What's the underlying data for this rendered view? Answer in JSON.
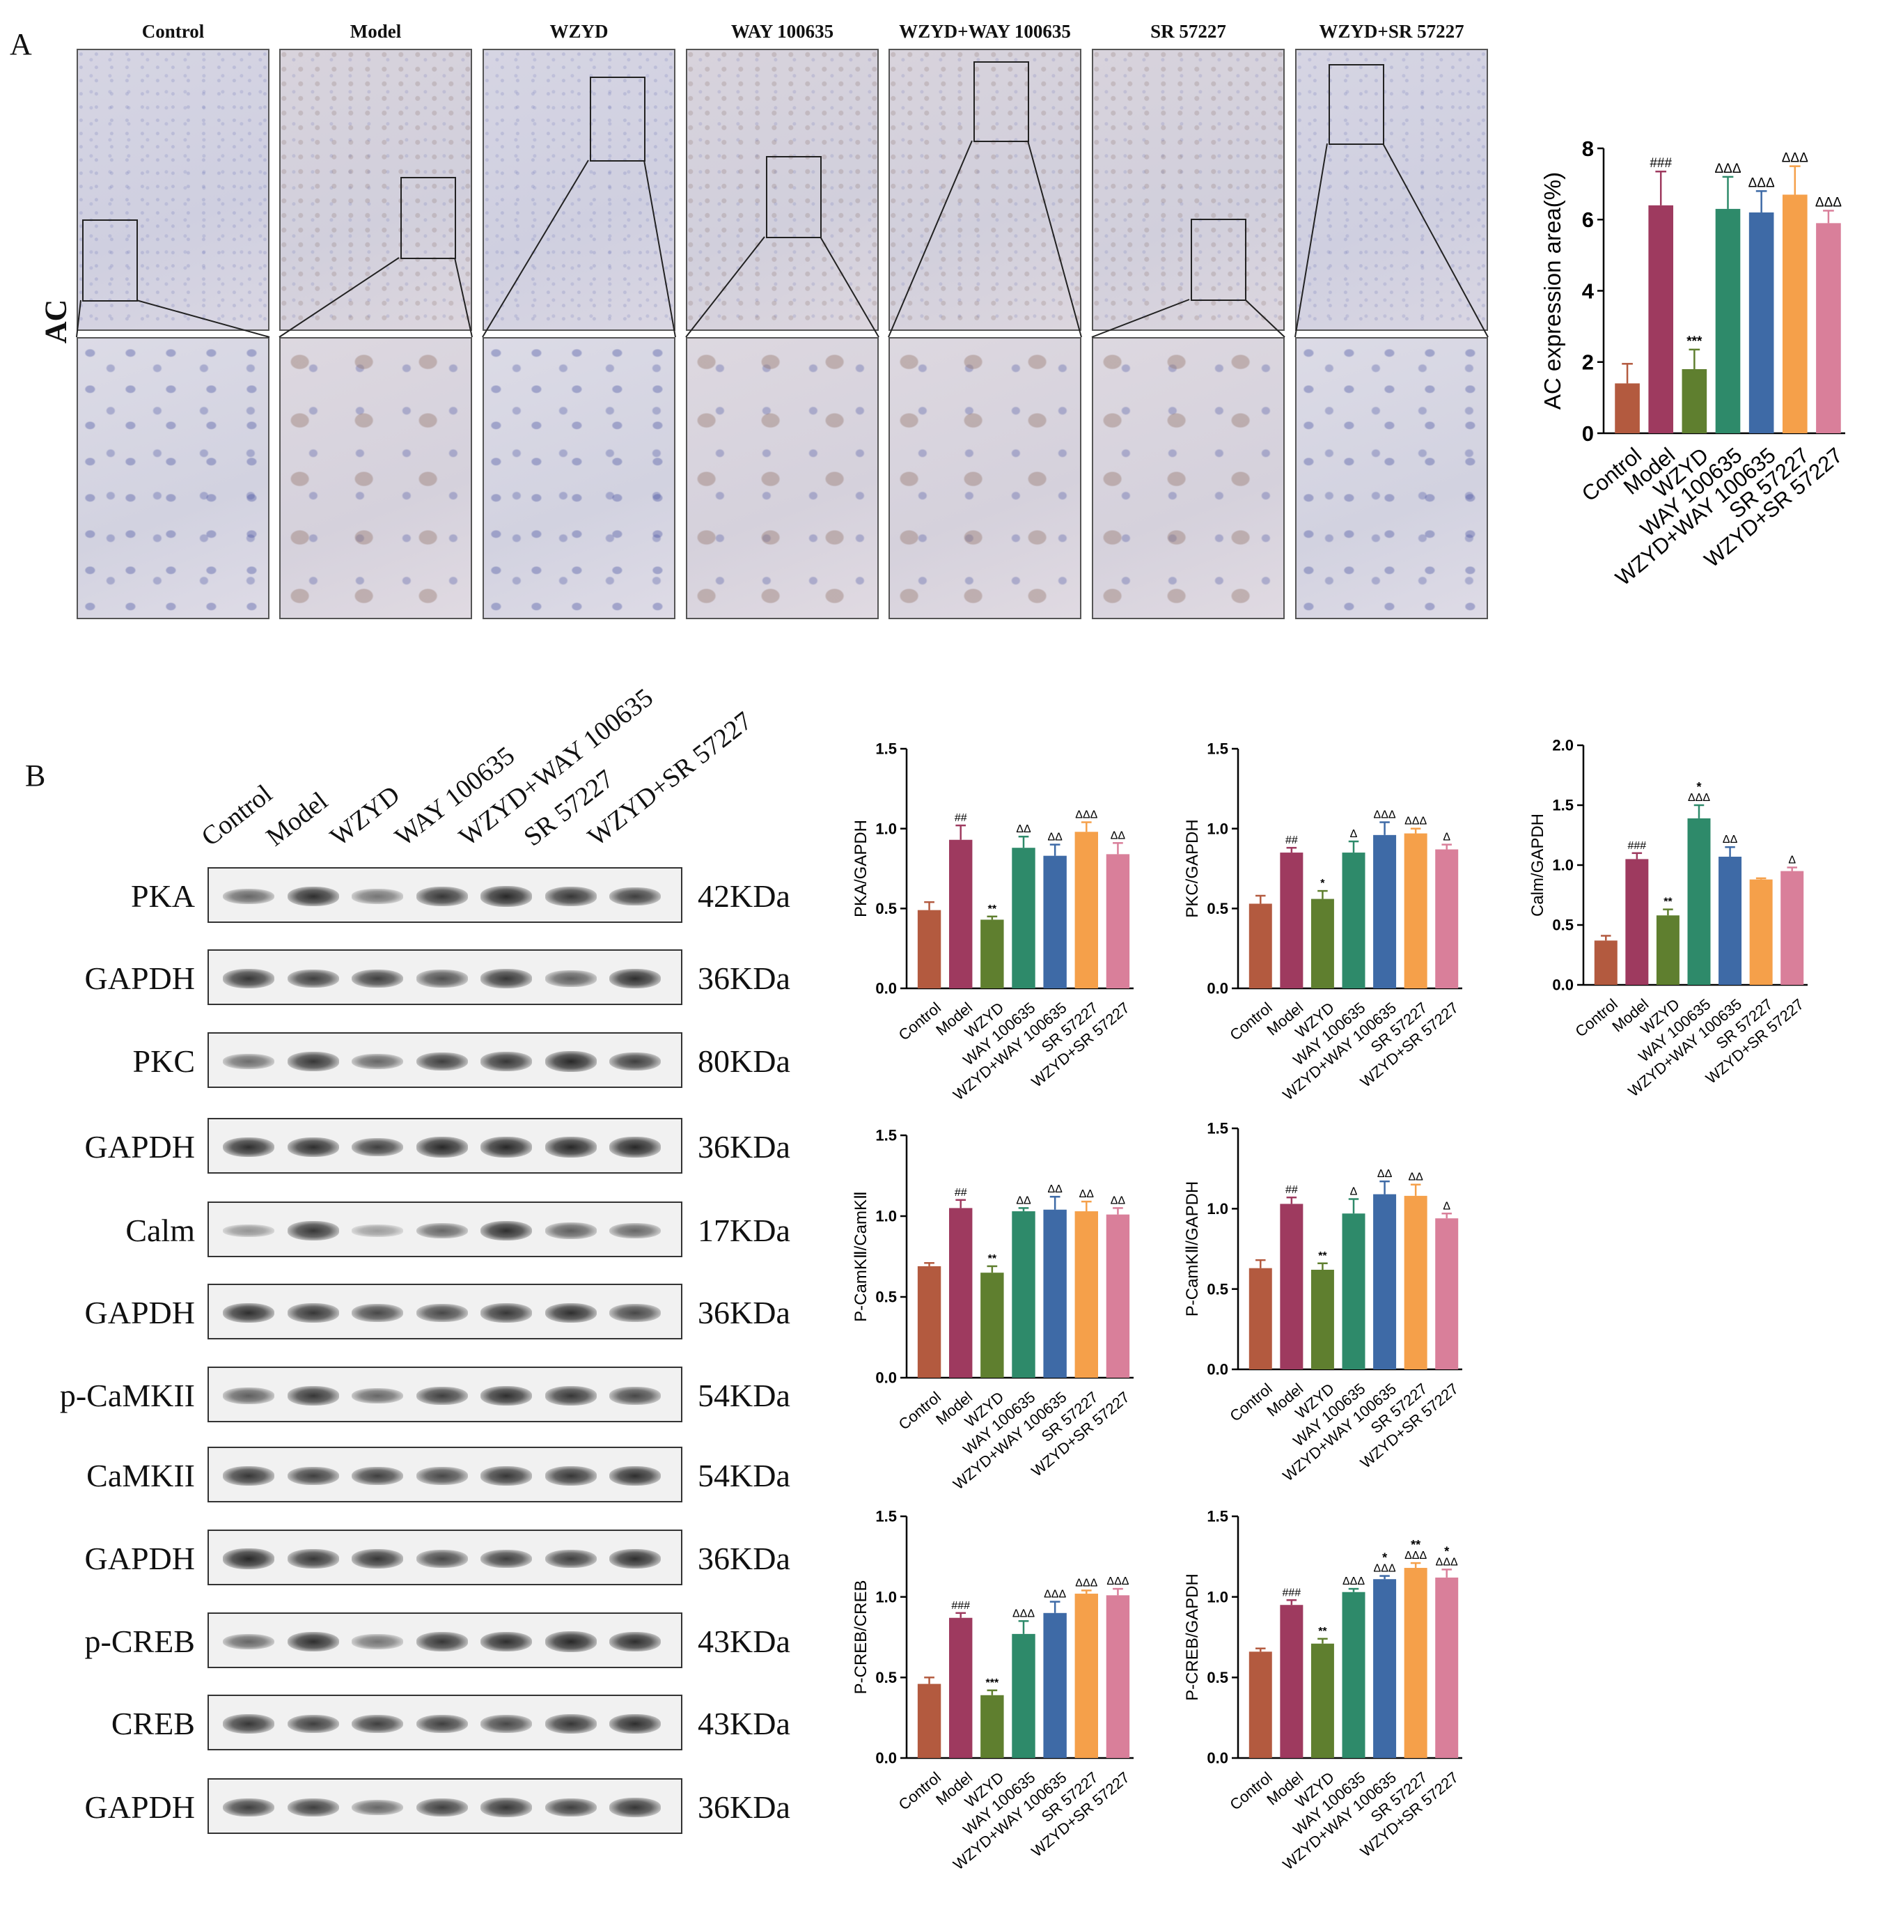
{
  "panels": {
    "a": "A",
    "b": "B"
  },
  "ihc": {
    "row_label": "AC",
    "groups": [
      "Control",
      "Model",
      "WZYD",
      "WAY 100635",
      "WZYD+WAY 100635",
      "SR 57227",
      "WZYD+SR 57227"
    ]
  },
  "blot": {
    "lanes": [
      "Control",
      "Model",
      "WZYD",
      "WAY 100635",
      "WZYD+WAY 100635",
      "SR 57227",
      "WZYD+SR 57227"
    ],
    "rows": [
      {
        "name": "PKA",
        "size": "42KDa",
        "intensity": [
          0.55,
          0.9,
          0.45,
          0.85,
          0.95,
          0.85,
          0.8
        ]
      },
      {
        "name": "GAPDH",
        "size": "36KDa",
        "intensity": [
          0.85,
          0.8,
          0.8,
          0.7,
          0.85,
          0.6,
          0.9
        ]
      },
      {
        "name": "PKC",
        "size": "80KDa",
        "intensity": [
          0.5,
          0.85,
          0.55,
          0.8,
          0.85,
          0.95,
          0.8
        ]
      },
      {
        "name": "GAPDH",
        "size": "36KDa",
        "intensity": [
          0.9,
          0.9,
          0.8,
          0.95,
          0.95,
          0.95,
          0.95
        ]
      },
      {
        "name": "Calm",
        "size": "17KDa",
        "intensity": [
          0.25,
          0.85,
          0.2,
          0.55,
          0.9,
          0.6,
          0.55
        ]
      },
      {
        "name": "GAPDH",
        "size": "36KDa",
        "intensity": [
          0.9,
          0.85,
          0.75,
          0.75,
          0.85,
          0.9,
          0.75
        ]
      },
      {
        "name": "p-CaMKII",
        "size": "54KDa",
        "intensity": [
          0.6,
          0.85,
          0.55,
          0.8,
          0.9,
          0.85,
          0.75
        ]
      },
      {
        "name": "CaMKII",
        "size": "54KDa",
        "intensity": [
          0.85,
          0.8,
          0.8,
          0.75,
          0.85,
          0.85,
          0.9
        ]
      },
      {
        "name": "GAPDH",
        "size": "36KDa",
        "intensity": [
          0.95,
          0.85,
          0.85,
          0.75,
          0.8,
          0.8,
          0.9
        ]
      },
      {
        "name": "p-CREB",
        "size": "43KDa",
        "intensity": [
          0.55,
          0.9,
          0.45,
          0.85,
          0.9,
          0.95,
          0.9
        ]
      },
      {
        "name": "CREB",
        "size": "43KDa",
        "intensity": [
          0.85,
          0.8,
          0.8,
          0.8,
          0.75,
          0.85,
          0.9
        ]
      },
      {
        "name": "GAPDH",
        "size": "36KDa",
        "intensity": [
          0.8,
          0.8,
          0.55,
          0.8,
          0.85,
          0.8,
          0.85
        ]
      }
    ]
  },
  "colors": [
    "#b35a3f",
    "#9e3a5f",
    "#5f7f2f",
    "#2e8a6a",
    "#3e6aa6",
    "#f5a04a",
    "#d97f9a"
  ],
  "chart_data": [
    {
      "id": "ac",
      "type": "bar",
      "ylabel": "AC expression area(%)",
      "ylim": [
        0,
        8
      ],
      "yticks": [
        "0",
        "2",
        "4",
        "6",
        "8"
      ],
      "categories": [
        "Control",
        "Model",
        "WZYD",
        "WAY 100635",
        "WZYD+WAY 100635",
        "SR 57227",
        "WZYD+SR 57227"
      ],
      "values": [
        1.4,
        6.4,
        1.8,
        6.3,
        6.2,
        6.7,
        5.9
      ],
      "errors": [
        0.55,
        0.95,
        0.55,
        0.9,
        0.6,
        0.8,
        0.35
      ],
      "annotations": [
        [
          "",
          ""
        ],
        [
          "",
          "###"
        ],
        [
          "",
          "***"
        ],
        [
          "",
          "ΔΔΔ"
        ],
        [
          "",
          "ΔΔΔ"
        ],
        [
          "",
          "ΔΔΔ"
        ],
        [
          "",
          "ΔΔΔ"
        ]
      ]
    },
    {
      "id": "pka",
      "type": "bar",
      "ylabel": "PKA/GAPDH",
      "ylim": [
        0,
        1.5
      ],
      "yticks": [
        "0.0",
        "0.5",
        "1.0",
        "1.5"
      ],
      "categories": [
        "Control",
        "Model",
        "WZYD",
        "WAY 100635",
        "WZYD+WAY 100635",
        "SR 57227",
        "WZYD+SR 57227"
      ],
      "values": [
        0.49,
        0.93,
        0.43,
        0.88,
        0.83,
        0.98,
        0.84
      ],
      "errors": [
        0.05,
        0.09,
        0.02,
        0.07,
        0.07,
        0.06,
        0.07
      ],
      "annotations": [
        [
          "",
          ""
        ],
        [
          "",
          "##"
        ],
        [
          "",
          "**"
        ],
        [
          "",
          "ΔΔ"
        ],
        [
          "",
          "ΔΔ"
        ],
        [
          "",
          "ΔΔΔ"
        ],
        [
          "",
          "ΔΔ"
        ]
      ]
    },
    {
      "id": "pkc",
      "type": "bar",
      "ylabel": "PKC/GAPDH",
      "ylim": [
        0,
        1.5
      ],
      "yticks": [
        "0.0",
        "0.5",
        "1.0",
        "1.5"
      ],
      "categories": [
        "Control",
        "Model",
        "WZYD",
        "WAY 100635",
        "WZYD+WAY 100635",
        "SR 57227",
        "WZYD+SR 57227"
      ],
      "values": [
        0.53,
        0.85,
        0.56,
        0.85,
        0.96,
        0.97,
        0.87
      ],
      "errors": [
        0.05,
        0.03,
        0.05,
        0.07,
        0.08,
        0.03,
        0.03
      ],
      "annotations": [
        [
          "",
          ""
        ],
        [
          "",
          "##"
        ],
        [
          "",
          "*"
        ],
        [
          "",
          "Δ"
        ],
        [
          "",
          "ΔΔΔ"
        ],
        [
          "",
          "ΔΔΔ"
        ],
        [
          "",
          "Δ"
        ]
      ]
    },
    {
      "id": "calm",
      "type": "bar",
      "ylabel": "Calm/GAPDH",
      "ylim": [
        0,
        2.0
      ],
      "yticks": [
        "0.0",
        "0.5",
        "1.0",
        "1.5",
        "2.0"
      ],
      "categories": [
        "Control",
        "Model",
        "WZYD",
        "WAY 100635",
        "WZYD+WAY 100635",
        "SR 57227",
        "WZYD+SR 57227"
      ],
      "values": [
        0.37,
        1.05,
        0.58,
        1.39,
        1.07,
        0.88,
        0.95
      ],
      "errors": [
        0.04,
        0.05,
        0.05,
        0.11,
        0.08,
        0.01,
        0.03
      ],
      "annotations": [
        [
          "",
          ""
        ],
        [
          "",
          "###"
        ],
        [
          "",
          "**"
        ],
        [
          "*",
          "ΔΔΔ"
        ],
        [
          "",
          "ΔΔ"
        ],
        [
          "",
          ""
        ],
        [
          "",
          "Δ"
        ]
      ]
    },
    {
      "id": "pcamk_camk",
      "type": "bar",
      "ylabel": "P-CamKⅡ/CamKⅡ",
      "ylim": [
        0,
        1.5
      ],
      "yticks": [
        "0.0",
        "0.5",
        "1.0",
        "1.5"
      ],
      "categories": [
        "Control",
        "Model",
        "WZYD",
        "WAY 100635",
        "WZYD+WAY 100635",
        "SR 57227",
        "WZYD+SR 57227"
      ],
      "values": [
        0.69,
        1.05,
        0.65,
        1.03,
        1.04,
        1.03,
        1.01
      ],
      "errors": [
        0.02,
        0.05,
        0.04,
        0.02,
        0.08,
        0.06,
        0.04
      ],
      "annotations": [
        [
          "",
          ""
        ],
        [
          "",
          "##"
        ],
        [
          "",
          "**"
        ],
        [
          "",
          "ΔΔ"
        ],
        [
          "",
          "ΔΔ"
        ],
        [
          "",
          "ΔΔ"
        ],
        [
          "",
          "ΔΔ"
        ]
      ]
    },
    {
      "id": "pcamk_gapdh",
      "type": "bar",
      "ylabel": "P-CamKⅡ/GAPDH",
      "ylim": [
        0,
        1.5
      ],
      "yticks": [
        "0.0",
        "0.5",
        "1.0",
        "1.5"
      ],
      "categories": [
        "Control",
        "Model",
        "WZYD",
        "WAY 100635",
        "WZYD+WAY 100635",
        "SR 57227",
        "WZYD+SR 57227"
      ],
      "values": [
        0.63,
        1.03,
        0.62,
        0.97,
        1.09,
        1.08,
        0.94
      ],
      "errors": [
        0.05,
        0.04,
        0.04,
        0.09,
        0.08,
        0.07,
        0.03
      ],
      "annotations": [
        [
          "",
          ""
        ],
        [
          "",
          "##"
        ],
        [
          "",
          "**"
        ],
        [
          "",
          "Δ"
        ],
        [
          "",
          "ΔΔ"
        ],
        [
          "",
          "ΔΔ"
        ],
        [
          "",
          "Δ"
        ]
      ]
    },
    {
      "id": "pcreb_creb",
      "type": "bar",
      "ylabel": "P-CREB/CREB",
      "ylim": [
        0,
        1.5
      ],
      "yticks": [
        "0.0",
        "0.5",
        "1.0",
        "1.5"
      ],
      "categories": [
        "Control",
        "Model",
        "WZYD",
        "WAY 100635",
        "WZYD+WAY 100635",
        "SR 57227",
        "WZYD+SR 57227"
      ],
      "values": [
        0.46,
        0.87,
        0.39,
        0.77,
        0.9,
        1.02,
        1.01
      ],
      "errors": [
        0.04,
        0.03,
        0.03,
        0.08,
        0.07,
        0.02,
        0.04
      ],
      "annotations": [
        [
          "",
          ""
        ],
        [
          "",
          "###"
        ],
        [
          "",
          "***"
        ],
        [
          "",
          "ΔΔΔ"
        ],
        [
          "",
          "ΔΔΔ"
        ],
        [
          "",
          "ΔΔΔ"
        ],
        [
          "",
          "ΔΔΔ"
        ]
      ]
    },
    {
      "id": "pcreb_gapdh",
      "type": "bar",
      "ylabel": "P-CREB/GAPDH",
      "ylim": [
        0,
        1.5
      ],
      "yticks": [
        "0.0",
        "0.5",
        "1.0",
        "1.5"
      ],
      "categories": [
        "Control",
        "Model",
        "WZYD",
        "WAY 100635",
        "WZYD+WAY 100635",
        "SR 57227",
        "WZYD+SR 57227"
      ],
      "values": [
        0.66,
        0.95,
        0.71,
        1.03,
        1.11,
        1.18,
        1.12
      ],
      "errors": [
        0.02,
        0.03,
        0.03,
        0.02,
        0.02,
        0.03,
        0.05
      ],
      "annotations": [
        [
          "",
          ""
        ],
        [
          "",
          "###"
        ],
        [
          "",
          "**"
        ],
        [
          "",
          "ΔΔΔ"
        ],
        [
          "*",
          "ΔΔΔ"
        ],
        [
          "**",
          "ΔΔΔ"
        ],
        [
          "*",
          "ΔΔΔ"
        ]
      ]
    }
  ]
}
